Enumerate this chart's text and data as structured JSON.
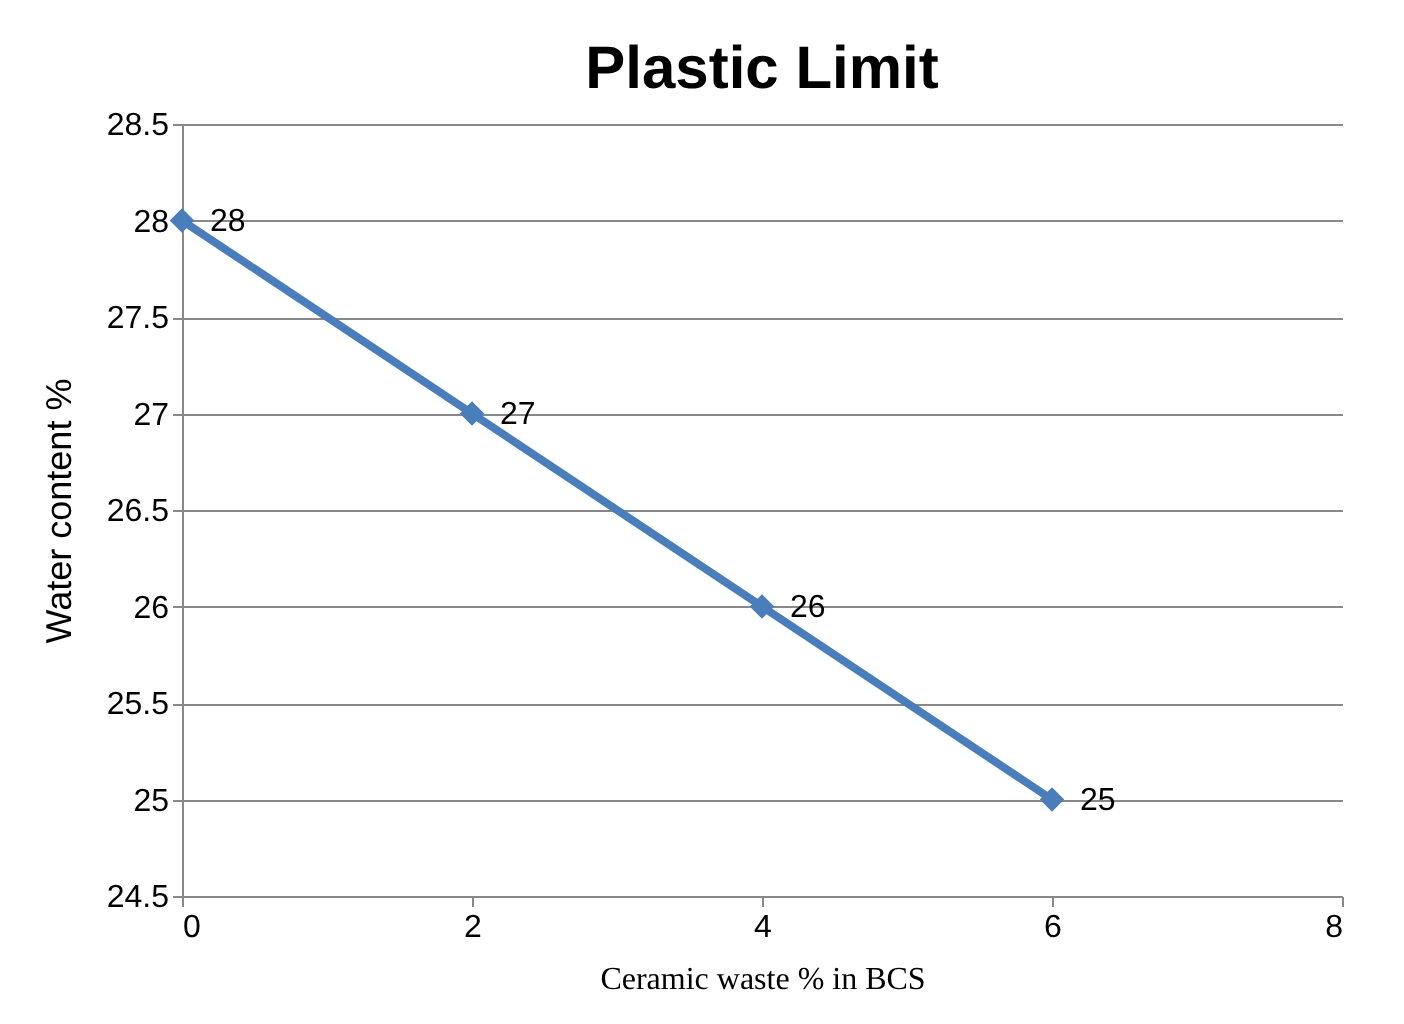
{
  "chart_data": {
    "type": "line",
    "title": "Plastic Limit",
    "xlabel": "Ceramic waste %  in BCS",
    "ylabel": "Water content %",
    "x": [
      0,
      2,
      4,
      6
    ],
    "series": [
      {
        "color": "#4a7ebb",
        "values": [
          28,
          27,
          26,
          25
        ]
      }
    ],
    "xlim": [
      0,
      8
    ],
    "xticks": [
      0,
      2,
      4,
      6,
      8
    ],
    "ylim": [
      24.5,
      28.5
    ],
    "yticks": [
      24.5,
      25,
      25.5,
      26,
      26.5,
      27,
      27.5,
      28,
      28.5
    ],
    "grid": "y",
    "marker": "diamond",
    "line_style": "solid",
    "data_labels": true
  }
}
